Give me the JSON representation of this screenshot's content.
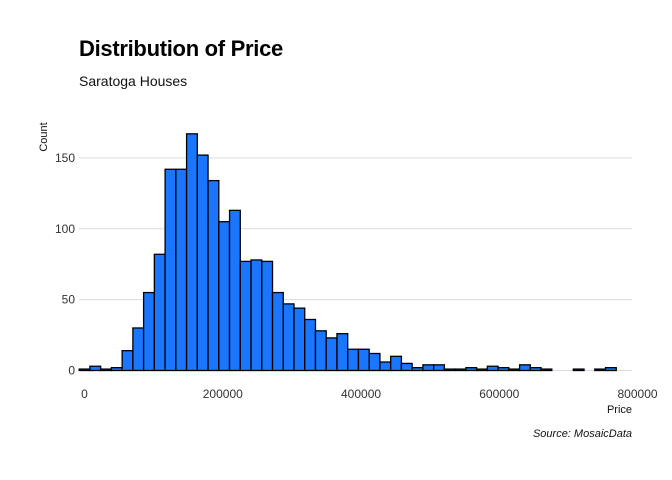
{
  "chart_data": {
    "type": "bar",
    "title": "Distribution of Price",
    "subtitle": "Saratoga Houses",
    "caption": "Source: MosaicData",
    "xlabel": "Price",
    "ylabel": "Count",
    "xlim": [
      -8000,
      792000
    ],
    "ylim": [
      0,
      175
    ],
    "x_ticks": [
      0,
      200000,
      400000,
      600000,
      800000
    ],
    "y_ticks": [
      0,
      50,
      100,
      150
    ],
    "bin_width": 15540,
    "bins_start": -7770,
    "values": [
      1,
      3,
      1,
      2,
      14,
      30,
      55,
      82,
      142,
      142,
      167,
      152,
      134,
      105,
      113,
      77,
      78,
      77,
      55,
      47,
      44,
      36,
      28,
      23,
      26,
      15,
      15,
      12,
      6,
      10,
      5,
      2,
      4,
      4,
      1,
      1,
      2,
      1,
      3,
      2,
      1,
      4,
      2,
      1,
      0,
      0,
      1,
      0,
      1,
      2
    ],
    "bar_fill": "#1a75ff",
    "bar_stroke": "#000000",
    "grid": "horizontal"
  }
}
